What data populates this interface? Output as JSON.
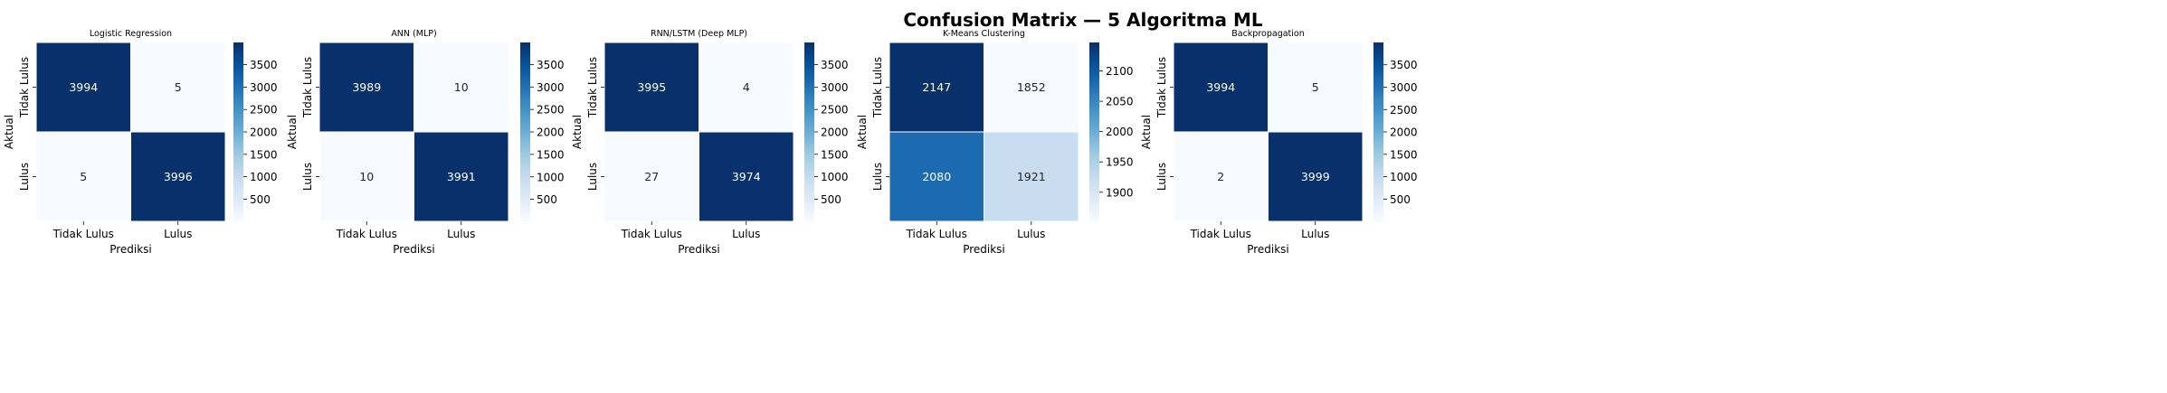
{
  "figure": {
    "title": "Confusion Matrix — 5 Algoritma ML"
  },
  "chart_data": [
    {
      "type": "heatmap",
      "title": "Logistic Regression",
      "xlabel": "Prediksi",
      "ylabel": "Aktual",
      "x_categories": [
        "Tidak Lulus",
        "Lulus"
      ],
      "y_categories": [
        "Tidak Lulus",
        "Lulus"
      ],
      "values": [
        [
          3994,
          5
        ],
        [
          5,
          3996
        ]
      ],
      "colorbar_ticks": [
        500,
        1000,
        1500,
        2000,
        2500,
        3000,
        3500
      ],
      "colormap": "Blues"
    },
    {
      "type": "heatmap",
      "title": "ANN (MLP)",
      "xlabel": "Prediksi",
      "ylabel": "Aktual",
      "x_categories": [
        "Tidak Lulus",
        "Lulus"
      ],
      "y_categories": [
        "Tidak Lulus",
        "Lulus"
      ],
      "values": [
        [
          3989,
          10
        ],
        [
          10,
          3991
        ]
      ],
      "colorbar_ticks": [
        500,
        1000,
        1500,
        2000,
        2500,
        3000,
        3500
      ],
      "colormap": "Blues"
    },
    {
      "type": "heatmap",
      "title": "RNN/LSTM (Deep MLP)",
      "xlabel": "Prediksi",
      "ylabel": "Aktual",
      "x_categories": [
        "Tidak Lulus",
        "Lulus"
      ],
      "y_categories": [
        "Tidak Lulus",
        "Lulus"
      ],
      "values": [
        [
          3995,
          4
        ],
        [
          27,
          3974
        ]
      ],
      "colorbar_ticks": [
        500,
        1000,
        1500,
        2000,
        2500,
        3000,
        3500
      ],
      "colormap": "Blues"
    },
    {
      "type": "heatmap",
      "title": "K-Means Clustering",
      "xlabel": "Prediksi",
      "ylabel": "Aktual",
      "x_categories": [
        "Tidak Lulus",
        "Lulus"
      ],
      "y_categories": [
        "Tidak Lulus",
        "Lulus"
      ],
      "values": [
        [
          2147,
          1852
        ],
        [
          2080,
          1921
        ]
      ],
      "colorbar_ticks": [
        1900,
        1950,
        2000,
        2050,
        2100
      ],
      "colormap": "Blues"
    },
    {
      "type": "heatmap",
      "title": "Backpropagation",
      "xlabel": "Prediksi",
      "ylabel": "Aktual",
      "x_categories": [
        "Tidak Lulus",
        "Lulus"
      ],
      "y_categories": [
        "Tidak Lulus",
        "Lulus"
      ],
      "values": [
        [
          3994,
          5
        ],
        [
          2,
          3999
        ]
      ],
      "colorbar_ticks": [
        500,
        1000,
        1500,
        2000,
        2500,
        3000,
        3500
      ],
      "colormap": "Blues"
    }
  ]
}
